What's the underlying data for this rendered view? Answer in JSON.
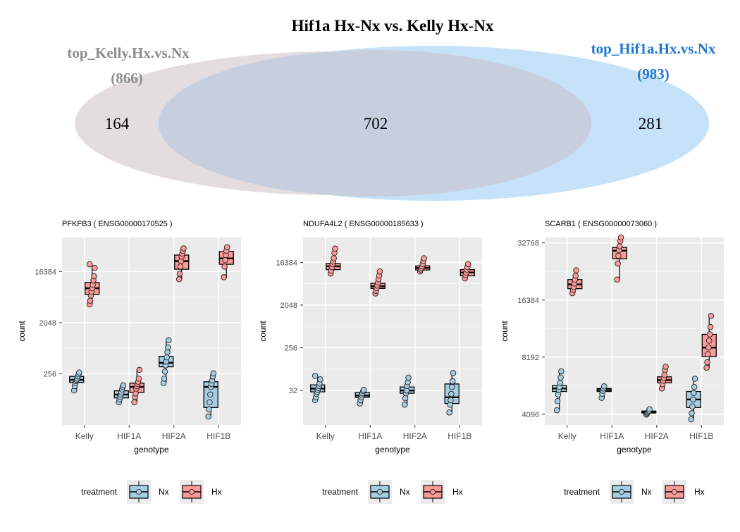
{
  "venn": {
    "title": "Hif1a Hx-Nx vs. Kelly Hx-Nx",
    "left": {
      "label": "top_Kelly.Hx.vs.Nx",
      "total": "(866)",
      "only": "164",
      "color": "#e3dde0",
      "label_color": "#8c8c8c"
    },
    "right": {
      "label": "top_Hif1a.Hx.vs.Nx",
      "total": "(983)",
      "only": "281",
      "color": "#c6e2f8",
      "label_color": "#1f77d0"
    },
    "overlap": {
      "value": "702",
      "color": "#c7cfdf"
    }
  },
  "legend": {
    "title": "treatment",
    "items": [
      {
        "label": "Nx",
        "fill": "#a6cee3"
      },
      {
        "label": "Hx",
        "fill": "#fb9a99"
      }
    ]
  },
  "chart_data": [
    {
      "type": "box",
      "title": "PFKFB3 ( ENSG00000170525 )",
      "xlabel": "genotype",
      "ylabel": "count",
      "scale": "log2",
      "categories": [
        "Kelly",
        "HIF1A",
        "HIF2A",
        "HIF1B"
      ],
      "yticks": [
        256,
        2048,
        16384
      ],
      "ylim": [
        32,
        65536
      ],
      "series": [
        {
          "name": "Nx",
          "boxes": [
            {
              "cat": "Kelly",
              "q1": 180,
              "median": 200,
              "q3": 230,
              "points": [
                130,
                155,
                175,
                190,
                200,
                210,
                230,
                250,
                270
              ]
            },
            {
              "cat": "HIF1A",
              "q1": 96,
              "median": 110,
              "q3": 128,
              "points": [
                80,
                90,
                100,
                110,
                120,
                135,
                150,
                160
              ]
            }
          ]
        },
        {
          "name": "Hx",
          "boxes": [
            {
              "cat": "Kelly",
              "q1": 6500,
              "median": 8300,
              "q3": 10500,
              "points": [
                4300,
                5000,
                6200,
                7200,
                8300,
                9500,
                11500,
                13500,
                19000,
                22000
              ]
            },
            {
              "cat": "HIF1A",
              "q1": 120,
              "median": 150,
              "q3": 175,
              "points": [
                80,
                100,
                115,
                140,
                155,
                170,
                185,
                210,
                300
              ]
            }
          ]
        },
        {
          "name": "Nx",
          "boxes": [
            {
              "cat": "HIF2A",
              "q1": 340,
              "median": 400,
              "q3": 520,
              "points": [
                175,
                210,
                280,
                360,
                420,
                500,
                620,
                750,
                1000
              ]
            },
            {
              "cat": "HIF1B",
              "q1": 65,
              "median": 150,
              "q3": 185,
              "points": [
                45,
                60,
                80,
                110,
                150,
                170,
                195,
                230,
                260
              ]
            }
          ]
        },
        {
          "name": "Hx",
          "boxes": [
            {
              "cat": "HIF2A",
              "q1": 18000,
              "median": 25000,
              "q3": 32000,
              "points": [
                12000,
                15000,
                20000,
                25000,
                30000,
                34000,
                38000,
                42000
              ]
            },
            {
              "cat": "HIF1B",
              "q1": 22000,
              "median": 28000,
              "q3": 37000,
              "points": [
                13000,
                20000,
                26000,
                32000,
                38000,
                44000
              ]
            }
          ]
        }
      ]
    },
    {
      "type": "box",
      "title": "NDUFA4L2 ( ENSG00000185633 )",
      "xlabel": "genotype",
      "ylabel": "count",
      "scale": "log2",
      "categories": [
        "Kelly",
        "HIF1A",
        "HIF2A",
        "HIF1B"
      ],
      "yticks": [
        32,
        256,
        2048,
        16384
      ],
      "ylim": [
        6,
        55000
      ],
      "series": [
        {
          "name": "Nx",
          "boxes": [
            {
              "cat": "Kelly",
              "q1": 30,
              "median": 35,
              "q3": 42,
              "points": [
                20,
                23,
                27,
                30,
                33,
                36,
                40,
                45,
                55,
                65
              ]
            },
            {
              "cat": "HIF1A",
              "q1": 23,
              "median": 25,
              "q3": 29,
              "points": [
                17,
                20,
                23,
                26,
                28,
                31,
                33
              ]
            },
            {
              "cat": "HIF2A",
              "q1": 28,
              "median": 32,
              "q3": 38,
              "points": [
                16,
                22,
                28,
                32,
                40,
                48,
                60
              ]
            },
            {
              "cat": "HIF1B",
              "q1": 17,
              "median": 23,
              "q3": 44,
              "points": [
                11,
                16,
                20,
                27,
                38,
                50,
                75
              ]
            }
          ]
        },
        {
          "name": "Hx",
          "boxes": [
            {
              "cat": "Kelly",
              "q1": 11500,
              "median": 13500,
              "q3": 15500,
              "points": [
                9500,
                11000,
                13000,
                15000,
                17000,
                20000,
                26000,
                32000
              ]
            },
            {
              "cat": "HIF1A",
              "q1": 4600,
              "median": 5100,
              "q3": 5900,
              "points": [
                3600,
                4100,
                4700,
                5300,
                6100,
                7200,
                8600,
                10500
              ]
            },
            {
              "cat": "HIF2A",
              "q1": 11300,
              "median": 12500,
              "q3": 13800,
              "points": [
                10500,
                11500,
                12500,
                13500,
                15000,
                17500,
                20000
              ]
            },
            {
              "cat": "HIF1B",
              "q1": 8500,
              "median": 10000,
              "q3": 11500,
              "points": [
                7500,
                8800,
                10000,
                11500,
                13000,
                15000
              ]
            }
          ]
        }
      ]
    },
    {
      "type": "box",
      "title": "SCARB1 ( ENSG00000073060 )",
      "xlabel": "genotype",
      "ylabel": "count",
      "scale": "log2",
      "categories": [
        "Kelly",
        "HIF1A",
        "HIF2A",
        "HIF1B"
      ],
      "yticks": [
        4096,
        8192,
        16384,
        32768
      ],
      "ylim": [
        3600,
        35000
      ],
      "series": [
        {
          "name": "Nx",
          "boxes": [
            {
              "cat": "Kelly",
              "q1": 5400,
              "median": 5600,
              "q3": 5800,
              "points": [
                4300,
                4800,
                5200,
                5500,
                5700,
                6000,
                6400,
                6900
              ]
            },
            {
              "cat": "HIF1A",
              "q1": 5400,
              "median": 5500,
              "q3": 5600,
              "points": [
                5000,
                5250,
                5450,
                5600,
                5750
              ]
            },
            {
              "cat": "HIF2A",
              "q1": 4160,
              "median": 4200,
              "q3": 4260,
              "points": [
                4080,
                4130,
                4180,
                4220,
                4280,
                4350
              ]
            },
            {
              "cat": "HIF1B",
              "q1": 4450,
              "median": 4900,
              "q3": 5400,
              "points": [
                3850,
                4150,
                4500,
                4900,
                5300,
                5700,
                6300
              ]
            }
          ]
        },
        {
          "name": "Hx",
          "boxes": [
            {
              "cat": "Kelly",
              "q1": 18800,
              "median": 19800,
              "q3": 21000,
              "points": [
                17800,
                18500,
                19200,
                20000,
                21000,
                22000,
                23500
              ]
            },
            {
              "cat": "HIF1A",
              "q1": 27000,
              "median": 29800,
              "q3": 31000,
              "points": [
                21000,
                25500,
                28000,
                30000,
                31500,
                33500,
                35000
              ]
            },
            {
              "cat": "HIF2A",
              "q1": 6000,
              "median": 6200,
              "q3": 6450,
              "points": [
                5600,
                5900,
                6150,
                6350,
                6600,
                7000,
                7300
              ]
            },
            {
              "cat": "HIF1B",
              "q1": 8250,
              "median": 9200,
              "q3": 10800,
              "points": [
                7200,
                7700,
                8500,
                9200,
                10000,
                10800,
                11800,
                13500
              ]
            }
          ]
        }
      ]
    }
  ]
}
